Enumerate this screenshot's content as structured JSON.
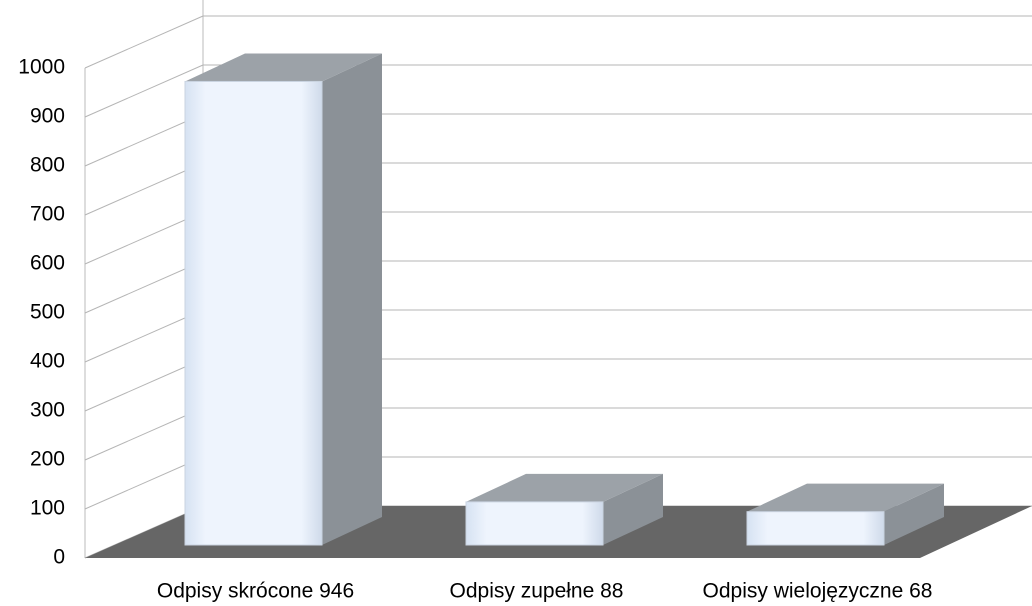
{
  "chart_data": {
    "type": "bar3d",
    "categories": [
      "Odpisy skrócone 946",
      "Odpisy zupełne 88",
      "Odpisy wielojęzyczne 68"
    ],
    "values": [
      946,
      88,
      68
    ],
    "color": "#e8f1fc",
    "ylim": [
      0,
      1000
    ],
    "yticks": [
      0,
      100,
      200,
      300,
      400,
      500,
      600,
      700,
      800,
      900,
      1000
    ],
    "grid": true
  }
}
